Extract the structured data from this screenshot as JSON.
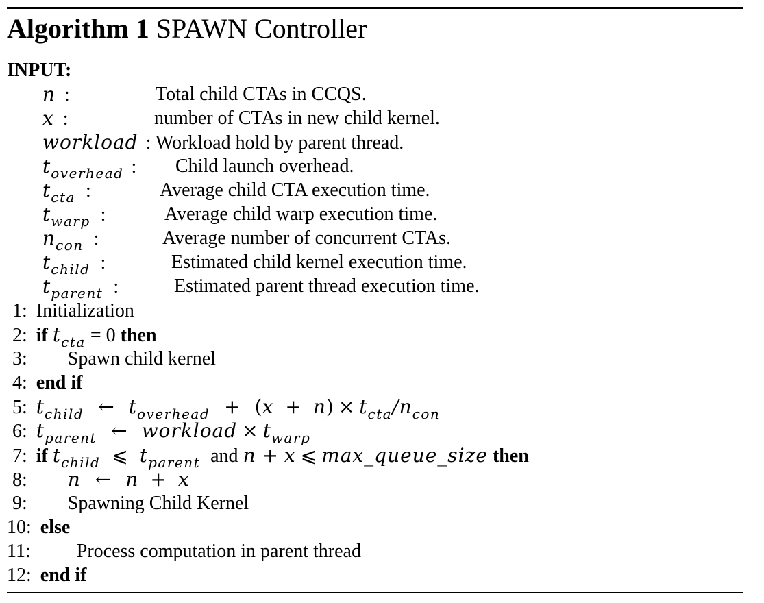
{
  "algorithm": {
    "label": "Algorithm 1",
    "title": "SPAWN Controller"
  },
  "input_label": "INPUT:",
  "inputs": [
    {
      "symbol": "n",
      "sub": "",
      "colon": ":",
      "desc": "Total child CTAs in CCQS."
    },
    {
      "symbol": "x",
      "sub": "",
      "colon": ":",
      "desc": "number of CTAs in new child kernel."
    },
    {
      "symbol": "workload",
      "sub": "",
      "colon": ":",
      "desc": "Workload hold by parent thread."
    },
    {
      "symbol": "t",
      "sub": "overhead",
      "colon": ":",
      "desc": "Child launch overhead."
    },
    {
      "symbol": "t",
      "sub": "cta",
      "colon": ":",
      "desc": "Average child CTA execution time."
    },
    {
      "symbol": "t",
      "sub": "warp",
      "colon": ":",
      "desc": "Average child warp execution time."
    },
    {
      "symbol": "n",
      "sub": "con",
      "colon": ":",
      "desc": "Average number of concurrent CTAs."
    },
    {
      "symbol": "t",
      "sub": "child",
      "colon": ":",
      "desc": "Estimated child kernel execution time."
    },
    {
      "symbol": "t",
      "sub": "parent",
      "colon": ":",
      "desc": "Estimated parent thread execution time."
    }
  ],
  "steps": [
    {
      "num": "1:",
      "text": "Initialization"
    },
    {
      "num": "2:",
      "kw_if": "if",
      "kw_then": "then",
      "cond_eq": "= 0"
    },
    {
      "num": "3:",
      "text": "Spawn child kernel"
    },
    {
      "num": "4:",
      "kw": "end if"
    },
    {
      "num": "5:"
    },
    {
      "num": "6:"
    },
    {
      "num": "7:",
      "kw_if": "if",
      "kw_and": "and",
      "kw_then": "then",
      "maxq": "max_queue_size"
    },
    {
      "num": "8:"
    },
    {
      "num": "9:",
      "text": "Spawning Child Kernel"
    },
    {
      "num": "10:",
      "kw": "else"
    },
    {
      "num": "11:",
      "text": "Process computation in parent thread"
    },
    {
      "num": "12:",
      "kw": "end if"
    }
  ]
}
